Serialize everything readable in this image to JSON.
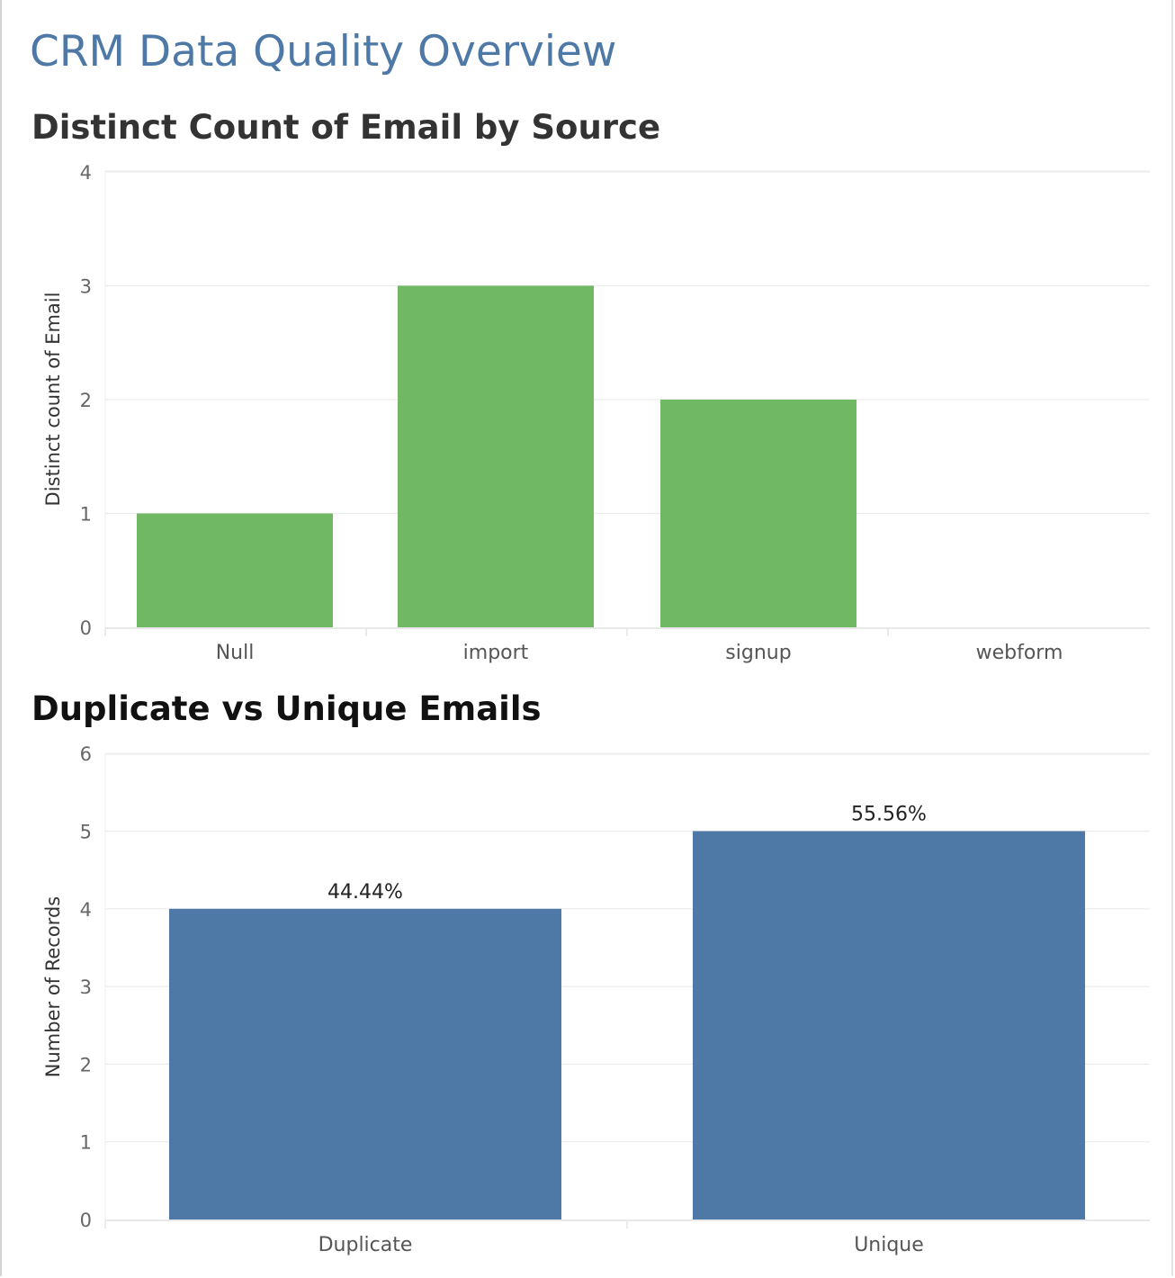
{
  "dashboard": {
    "title": "CRM Data Quality Overview"
  },
  "colors": {
    "title": "#4e79a7",
    "chart1_bar": "#71b865",
    "chart2_bar": "#4e79a7",
    "grid": "#ececec"
  },
  "chart_data": [
    {
      "type": "bar",
      "title": "Distinct Count of Email by Source",
      "xlabel": "",
      "ylabel": "Distinct count of Email",
      "categories": [
        "Null",
        "import",
        "signup",
        "webform"
      ],
      "values": [
        1,
        3,
        2,
        0
      ],
      "yticks": [
        0,
        1,
        2,
        3,
        4
      ],
      "ylim": [
        0,
        4.1
      ],
      "grid": true,
      "legend": "none"
    },
    {
      "type": "bar",
      "title": "Duplicate vs Unique Emails",
      "xlabel": "",
      "ylabel": "Number of Records",
      "categories": [
        "Duplicate",
        "Unique"
      ],
      "values": [
        4,
        5
      ],
      "data_labels": [
        "44.44%",
        "55.56%"
      ],
      "yticks": [
        0,
        1,
        2,
        3,
        4,
        5,
        6
      ],
      "ylim": [
        0,
        6.2
      ],
      "grid": true,
      "legend": "none"
    }
  ]
}
